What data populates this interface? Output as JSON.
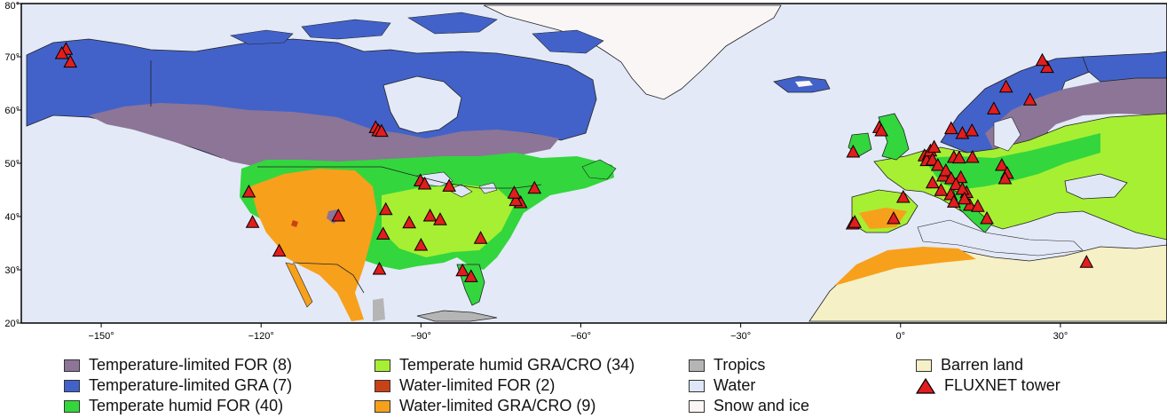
{
  "map": {
    "extent": {
      "lon": [
        -165,
        50
      ],
      "lat": [
        20,
        80
      ]
    },
    "lat_ticks": [
      {
        "value": 20,
        "label": "20°"
      },
      {
        "value": 30,
        "label": "30°"
      },
      {
        "value": 40,
        "label": "40°"
      },
      {
        "value": 50,
        "label": "50°"
      },
      {
        "value": 60,
        "label": "60°"
      },
      {
        "value": 70,
        "label": "70°"
      },
      {
        "value": 80,
        "label": "80°"
      }
    ],
    "lon_ticks": [
      {
        "value": -150,
        "label": "−150°"
      },
      {
        "value": -120,
        "label": "−120°"
      },
      {
        "value": -90,
        "label": "−90°"
      },
      {
        "value": -60,
        "label": "−60°"
      },
      {
        "value": -30,
        "label": "−30°"
      },
      {
        "value": 0,
        "label": "0°"
      },
      {
        "value": 30,
        "label": "30°"
      }
    ],
    "colors": {
      "ocean": "#e3e9f7",
      "temp_limited_for": "#8c7596",
      "temp_limited_gra": "#4262c9",
      "temp_humid_for": "#33d63d",
      "temp_humid_gra_cro": "#a7ef33",
      "water_limited_for": "#c94116",
      "water_limited_gra_cro": "#f7a01b",
      "tropics": "#b5b5b5",
      "water": "#dfe7f7",
      "snow_ice": "#fbf6f6",
      "barren": "#f6f0c6",
      "fluxnet": "#e11d1d"
    },
    "towers": [
      [
        -156.6,
        71.3
      ],
      [
        -157.4,
        70.5
      ],
      [
        -155.8,
        68.9
      ],
      [
        -98.5,
        56.6
      ],
      [
        -98.0,
        56.0
      ],
      [
        -97.4,
        55.9
      ],
      [
        -122.3,
        44.5
      ],
      [
        -121.6,
        38.8
      ],
      [
        -116.6,
        33.4
      ],
      [
        -105.5,
        40.0
      ],
      [
        -96.6,
        41.2
      ],
      [
        -97.1,
        36.6
      ],
      [
        -92.2,
        38.7
      ],
      [
        -90.1,
        46.6
      ],
      [
        -89.3,
        46.0
      ],
      [
        -84.7,
        45.6
      ],
      [
        -88.3,
        40.0
      ],
      [
        -86.4,
        39.3
      ],
      [
        -90.0,
        34.5
      ],
      [
        -97.8,
        30.0
      ],
      [
        -78.8,
        35.8
      ],
      [
        -71.3,
        42.5
      ],
      [
        -72.2,
        42.9
      ],
      [
        -72.5,
        44.3
      ],
      [
        -68.7,
        45.2
      ],
      [
        -82.2,
        29.7
      ],
      [
        -80.6,
        28.6
      ],
      [
        -9.0,
        38.5
      ],
      [
        -8.6,
        38.8
      ],
      [
        -8.9,
        52.0
      ],
      [
        -4.0,
        56.6
      ],
      [
        -3.6,
        56.0
      ],
      [
        0.5,
        43.5
      ],
      [
        -1.3,
        39.5
      ],
      [
        4.5,
        51.3
      ],
      [
        5.3,
        51.6
      ],
      [
        4.9,
        50.4
      ],
      [
        5.6,
        52.2
      ],
      [
        6.3,
        52.9
      ],
      [
        6.0,
        50.5
      ],
      [
        8.0,
        47.5
      ],
      [
        10.0,
        51.0
      ],
      [
        11.0,
        50.9
      ],
      [
        13.5,
        51.0
      ],
      [
        7.0,
        49.5
      ],
      [
        8.5,
        48.5
      ],
      [
        9.5,
        47.0
      ],
      [
        11.3,
        47.2
      ],
      [
        10.4,
        45.9
      ],
      [
        12.4,
        44.4
      ],
      [
        11.6,
        45.0
      ],
      [
        13.0,
        42.0
      ],
      [
        14.5,
        41.8
      ],
      [
        16.2,
        39.5
      ],
      [
        12.0,
        43.2
      ],
      [
        9.4,
        44.0
      ],
      [
        7.6,
        44.8
      ],
      [
        6.0,
        46.2
      ],
      [
        10.0,
        42.6
      ],
      [
        9.5,
        56.4
      ],
      [
        11.6,
        55.5
      ],
      [
        13.4,
        56.0
      ],
      [
        19.0,
        49.5
      ],
      [
        20.0,
        48.0
      ],
      [
        19.6,
        47.0
      ],
      [
        17.5,
        60.1
      ],
      [
        19.8,
        64.2
      ],
      [
        24.3,
        61.8
      ],
      [
        27.5,
        67.9
      ],
      [
        26.6,
        69.2
      ],
      [
        34.9,
        31.3
      ]
    ]
  },
  "legend": {
    "items": [
      {
        "key": "temp_limited_for",
        "label": "Temperature-limited FOR (8)"
      },
      {
        "key": "temp_limited_gra",
        "label": "Temperature-limited GRA (7)"
      },
      {
        "key": "temp_humid_for",
        "label": "Temperate humid FOR (40)"
      },
      {
        "key": "temp_humid_gra_cro",
        "label": "Temperate humid GRA/CRO (34)"
      },
      {
        "key": "water_limited_for",
        "label": "Water-limited FOR (2)"
      },
      {
        "key": "water_limited_gra_cro",
        "label": "Water-limited GRA/CRO (9)"
      },
      {
        "key": "tropics",
        "label": "Tropics"
      },
      {
        "key": "water",
        "label": "Water"
      },
      {
        "key": "snow_ice",
        "label": "Snow and ice"
      },
      {
        "key": "barren",
        "label": "Barren land"
      },
      {
        "key": "fluxnet",
        "label": "FLUXNET tower"
      }
    ]
  }
}
